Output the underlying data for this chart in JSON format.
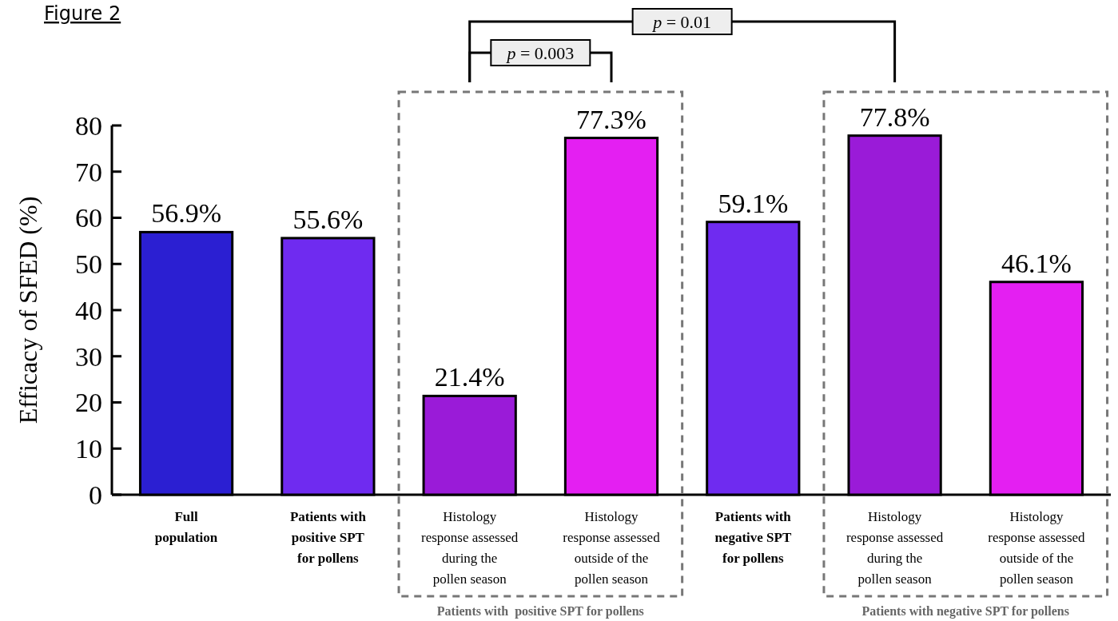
{
  "chart_data": {
    "type": "bar",
    "title": "Figure 2",
    "ylabel": "Efficacy of SFED (%)",
    "categories": [
      "Full\npopulation",
      "Patients with\npositive SPT\nfor pollens",
      "Histology\nresponse assessed\nduring the\npollen season",
      "Histology\nresponse assessed\noutside of the\npollen season",
      "Patients with\nnegative SPT\nfor pollens",
      "Histology\nresponse assessed\nduring the\npollen season",
      "Histology\nresponse assessed\noutside of the\npollen season"
    ],
    "values": [
      56.9,
      55.6,
      21.4,
      77.3,
      59.1,
      77.8,
      46.1
    ],
    "colors": [
      "#2b1fd2",
      "#6f2bf0",
      "#9a1bd8",
      "#e41ff2",
      "#6f2bf0",
      "#9a1bd8",
      "#e41ff2"
    ],
    "value_labels": [
      "56.9%",
      "55.6%",
      "21.4%",
      "77.3%",
      "59.1%",
      "77.8%",
      "46.1%"
    ],
    "ylim": [
      0,
      80
    ],
    "yticks": [
      0,
      10,
      20,
      30,
      40,
      50,
      60,
      70,
      80
    ],
    "grid": false,
    "annotations": [
      "Patients with  positive SPT for pollens",
      "Patients with negative SPT for pollens",
      "p = 0.003",
      "p = 0.01"
    ]
  }
}
